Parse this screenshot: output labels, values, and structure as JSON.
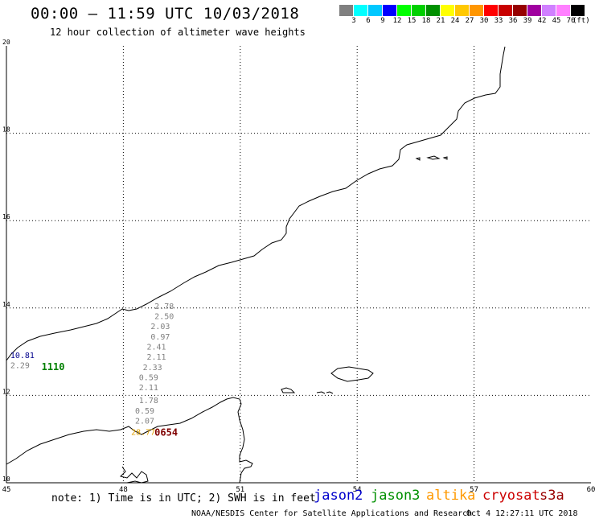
{
  "header": {
    "title": "00:00 – 11:59 UTC 10/03/2018",
    "subtitle": "12 hour collection of altimeter wave heights"
  },
  "legend": {
    "colors": [
      "#808080",
      "#00ffff",
      "#00c8ff",
      "#0000ff",
      "#00ff00",
      "#00d000",
      "#009000",
      "#ffff00",
      "#ffc800",
      "#ff9600",
      "#ff0000",
      "#c80000",
      "#960000",
      "#a000a0",
      "#d080ff",
      "#ff80ff",
      "#000000"
    ],
    "labels": [
      "3",
      "6",
      "9",
      "12",
      "15",
      "18",
      "21",
      "24",
      "27",
      "30",
      "33",
      "36",
      "39",
      "42",
      "45",
      "70"
    ],
    "unit": "(ft)"
  },
  "map": {
    "lon_ticks": [
      "45",
      "48",
      "51",
      "54",
      "57",
      "60"
    ],
    "lat_ticks": [
      "20",
      "18",
      "16",
      "14",
      "12",
      "10"
    ],
    "observations": [
      {
        "lon": 48.8,
        "lat": 13.98,
        "value": "2.78",
        "color": "#808080"
      },
      {
        "lon": 48.8,
        "lat": 13.75,
        "value": "2.50",
        "color": "#808080"
      },
      {
        "lon": 48.7,
        "lat": 13.52,
        "value": "2.03",
        "color": "#808080"
      },
      {
        "lon": 48.7,
        "lat": 13.28,
        "value": "0.97",
        "color": "#808080"
      },
      {
        "lon": 48.6,
        "lat": 13.05,
        "value": "2.41",
        "color": "#808080"
      },
      {
        "lon": 48.6,
        "lat": 12.82,
        "value": "2.11",
        "color": "#808080"
      },
      {
        "lon": 48.5,
        "lat": 12.58,
        "value": "2.33",
        "color": "#808080"
      },
      {
        "lon": 48.4,
        "lat": 12.35,
        "value": "0.59",
        "color": "#808080"
      },
      {
        "lon": 48.4,
        "lat": 12.12,
        "value": "2.11",
        "color": "#808080"
      },
      {
        "lon": 48.4,
        "lat": 11.82,
        "value": "1.78",
        "color": "#808080"
      },
      {
        "lon": 48.3,
        "lat": 11.58,
        "value": "0.59",
        "color": "#808080"
      },
      {
        "lon": 48.3,
        "lat": 11.35,
        "value": "2.07",
        "color": "#808080"
      },
      {
        "lon": 48.2,
        "lat": 11.1,
        "value": "28.77",
        "color": "#e0a000"
      },
      {
        "lon": 45.1,
        "lat": 12.85,
        "value": "10.81",
        "color": "#00008b"
      },
      {
        "lon": 45.1,
        "lat": 12.62,
        "value": "2.29",
        "color": "#808080"
      }
    ],
    "pass_labels": [
      {
        "lon": 45.9,
        "lat": 12.58,
        "text": "1110",
        "color": "#008000"
      },
      {
        "lon": 48.8,
        "lat": 11.08,
        "text": "0654",
        "color": "#800000"
      }
    ]
  },
  "footer": {
    "note": "note: 1) Time is in UTC; 2) SWH is in feet",
    "satellites": [
      {
        "name": "jason2",
        "color": "#0000cc"
      },
      {
        "name": "jason3",
        "color": "#009000"
      },
      {
        "name": "altika",
        "color": "#ff9900"
      },
      {
        "name": "cryosat",
        "color": "#cc0000"
      },
      {
        "name": "s3a",
        "color": "#990000"
      }
    ],
    "credit": "NOAA/NESDIS Center for Satellite Applications and Research",
    "timestamp": "Oct  4 12:27:11 UTC 2018"
  }
}
